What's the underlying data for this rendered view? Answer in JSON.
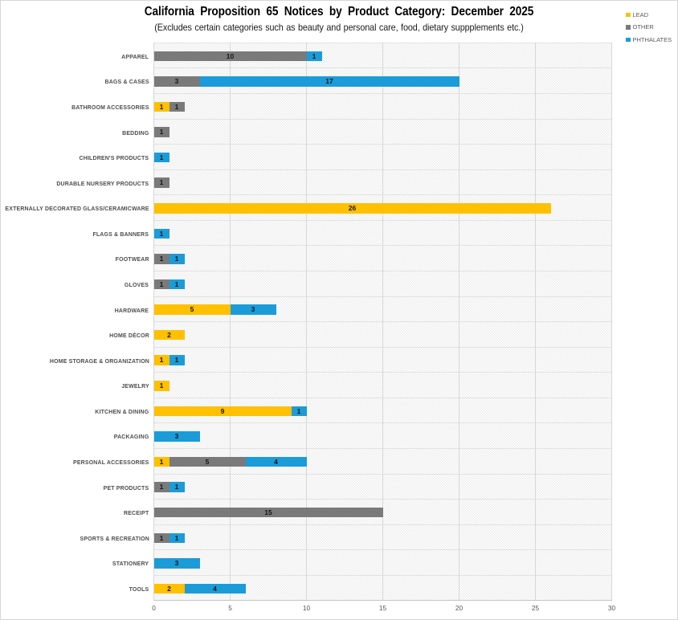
{
  "title": "California Proposition 65 Notices by Product Category: December 2025",
  "subtitle": "(Excludes certain categories such as beauty and personal care, food, dietary suppplements etc.)",
  "legend": {
    "position": "top-right",
    "items": [
      {
        "label": "LEAD",
        "color": "#FFC000"
      },
      {
        "label": "OTHER",
        "color": "#7A7A7A"
      },
      {
        "label": "PHTHALATES",
        "color": "#1B9CD8"
      }
    ]
  },
  "chart_data": {
    "type": "bar",
    "orientation": "horizontal",
    "stacked": true,
    "title": "California Proposition 65 Notices by Product Category: December 2025",
    "subtitle": "(Excludes certain categories such as beauty and personal care, food, dietary suppplements etc.)",
    "xlabel": "",
    "ylabel": "",
    "xlim": [
      0,
      30
    ],
    "xticks": [
      0,
      5,
      10,
      15,
      20,
      25,
      30
    ],
    "grid": true,
    "data_labels": true,
    "legend_position": "top-right",
    "categories": [
      "APPAREL",
      "BAGS & CASES",
      "BATHROOM ACCESSORIES",
      "BEDDING",
      "CHILDREN'S PRODUCTS",
      "DURABLE NURSERY PRODUCTS",
      "EXTERNALLY DECORATED GLASS/CERAMICWARE",
      "FLAGS & BANNERS",
      "FOOTWEAR",
      "GLOVES",
      "HARDWARE",
      "HOME DÉCOR",
      "HOME STORAGE & ORGANIZATION",
      "JEWELRY",
      "KITCHEN & DINING",
      "PACKAGING",
      "PERSONAL ACCESSORIES",
      "PET PRODUCTS",
      "RECEIPT",
      "SPORTS & RECREATION",
      "STATIONERY",
      "TOOLS"
    ],
    "series": [
      {
        "name": "LEAD",
        "color": "#FFC000",
        "values": [
          0,
          0,
          1,
          0,
          0,
          0,
          26,
          0,
          0,
          0,
          5,
          2,
          1,
          1,
          9,
          0,
          1,
          0,
          0,
          0,
          0,
          2
        ]
      },
      {
        "name": "OTHER",
        "color": "#7A7A7A",
        "values": [
          10,
          3,
          1,
          1,
          0,
          1,
          0,
          0,
          1,
          1,
          0,
          0,
          0,
          0,
          0,
          0,
          5,
          1,
          15,
          1,
          0,
          0
        ]
      },
      {
        "name": "PHTHALATES",
        "color": "#1B9CD8",
        "values": [
          1,
          17,
          0,
          0,
          1,
          0,
          0,
          1,
          1,
          1,
          3,
          0,
          1,
          0,
          1,
          3,
          4,
          1,
          0,
          1,
          3,
          4
        ]
      }
    ]
  }
}
